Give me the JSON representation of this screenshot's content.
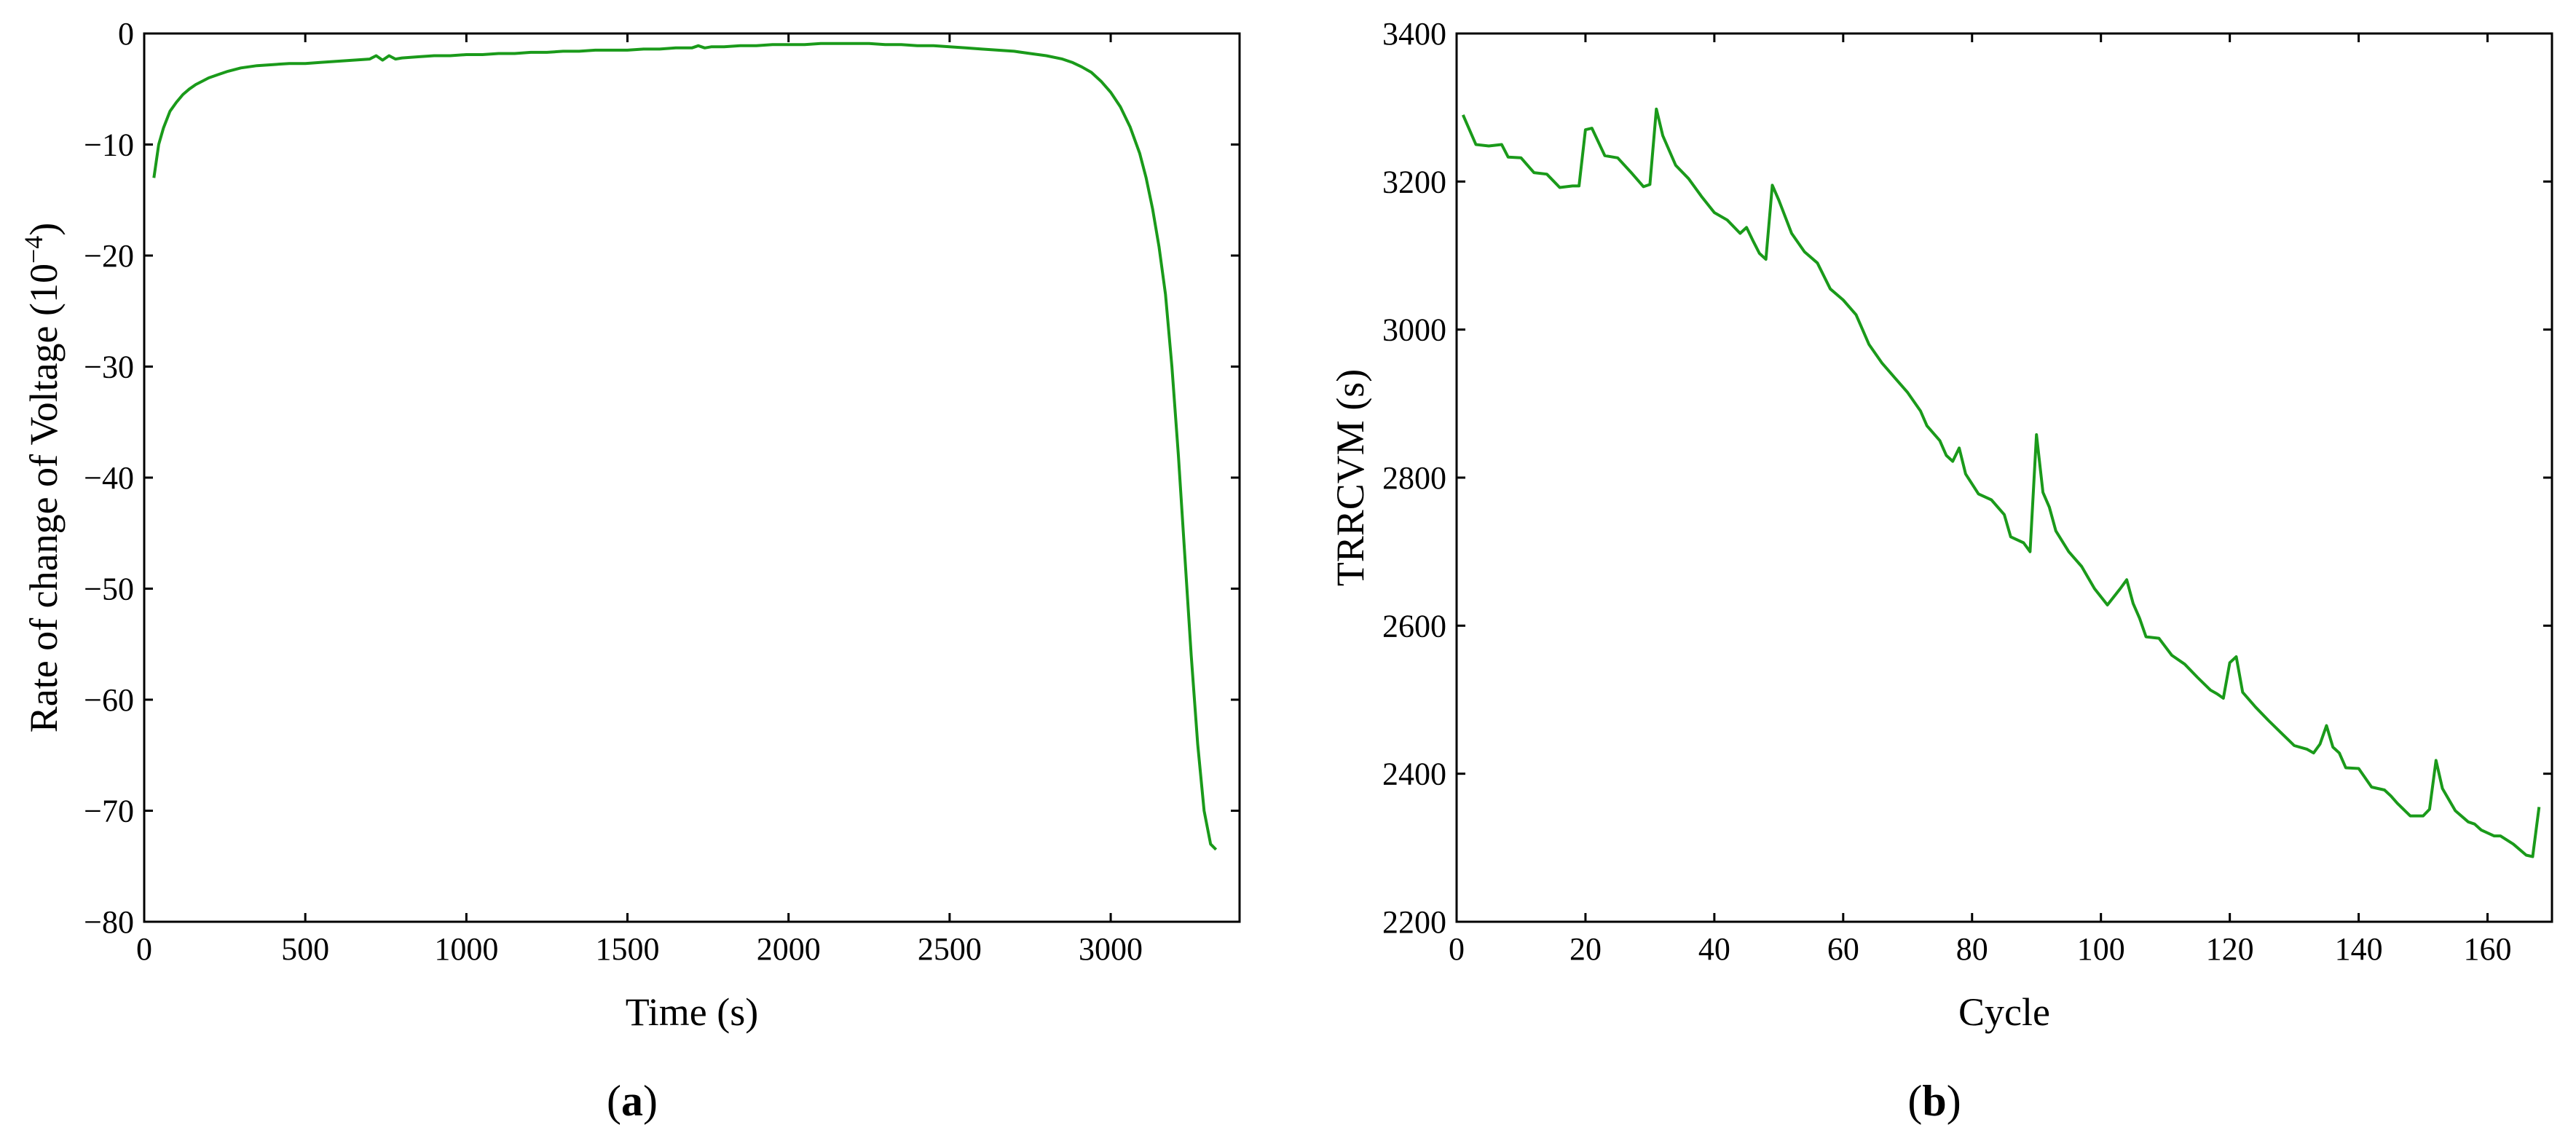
{
  "chart_data": [
    {
      "type": "line",
      "panel_label": "a",
      "xlabel": "Time (s)",
      "ylabel_base": "Rate of change of Voltage (10",
      "ylabel_exp": "−4",
      "ylabel_tail": ")",
      "xlim": [
        0,
        3400
      ],
      "ylim": [
        -80,
        0
      ],
      "xticks": [
        0,
        500,
        1000,
        1500,
        2000,
        2500,
        3000
      ],
      "yticks": [
        0,
        -10,
        -20,
        -30,
        -40,
        -50,
        -60,
        -70,
        -80
      ],
      "xtick_labels": [
        "0",
        "500",
        "1000",
        "1500",
        "2000",
        "2500",
        "3000"
      ],
      "ytick_labels": [
        "0",
        "−10",
        "−20",
        "−30",
        "−40",
        "−50",
        "−60",
        "−70",
        "−80"
      ],
      "line_color": "#1a9a1a",
      "series": [
        {
          "x": [
            30,
            45,
            60,
            80,
            100,
            120,
            140,
            160,
            180,
            200,
            230,
            260,
            300,
            350,
            400,
            450,
            500,
            550,
            600,
            650,
            700,
            720,
            740,
            760,
            780,
            800,
            850,
            900,
            950,
            1000,
            1050,
            1100,
            1150,
            1200,
            1250,
            1300,
            1350,
            1400,
            1450,
            1500,
            1550,
            1600,
            1650,
            1700,
            1720,
            1740,
            1760,
            1800,
            1850,
            1900,
            1950,
            2000,
            2050,
            2100,
            2150,
            2200,
            2250,
            2300,
            2350,
            2400,
            2450,
            2500,
            2550,
            2600,
            2650,
            2700,
            2750,
            2800,
            2850,
            2880,
            2910,
            2940,
            2970,
            3000,
            3030,
            3060,
            3090,
            3110,
            3130,
            3150,
            3170,
            3190,
            3210,
            3230,
            3250,
            3270,
            3290,
            3310,
            3327
          ],
          "y": [
            -13.0,
            -10.0,
            -8.5,
            -7.0,
            -6.2,
            -5.5,
            -5.0,
            -4.6,
            -4.3,
            -4.0,
            -3.7,
            -3.4,
            -3.1,
            -2.9,
            -2.8,
            -2.7,
            -2.7,
            -2.6,
            -2.5,
            -2.4,
            -2.3,
            -2.0,
            -2.4,
            -2.0,
            -2.3,
            -2.2,
            -2.1,
            -2.0,
            -2.0,
            -1.9,
            -1.9,
            -1.8,
            -1.8,
            -1.7,
            -1.7,
            -1.6,
            -1.6,
            -1.5,
            -1.5,
            -1.5,
            -1.4,
            -1.4,
            -1.3,
            -1.3,
            -1.1,
            -1.3,
            -1.2,
            -1.2,
            -1.1,
            -1.1,
            -1.0,
            -1.0,
            -1.0,
            -0.9,
            -0.9,
            -0.9,
            -0.9,
            -1.0,
            -1.0,
            -1.1,
            -1.1,
            -1.2,
            -1.3,
            -1.4,
            -1.5,
            -1.6,
            -1.8,
            -2.0,
            -2.3,
            -2.6,
            -3.0,
            -3.5,
            -4.3,
            -5.3,
            -6.6,
            -8.4,
            -10.8,
            -13.0,
            -15.8,
            -19.2,
            -23.5,
            -30.0,
            -38.0,
            -47.0,
            -56.0,
            -64.0,
            -70.0,
            -73.0,
            -73.5
          ]
        }
      ]
    },
    {
      "type": "line",
      "panel_label": "b",
      "xlabel": "Cycle",
      "ylabel": "TRRCVM (s)",
      "xlim": [
        0,
        170
      ],
      "ylim": [
        2200,
        3400
      ],
      "xticks": [
        0,
        20,
        40,
        60,
        80,
        100,
        120,
        140,
        160
      ],
      "yticks": [
        2200,
        2400,
        2600,
        2800,
        3000,
        3200,
        3400
      ],
      "xtick_labels": [
        "0",
        "20",
        "40",
        "60",
        "80",
        "100",
        "120",
        "140",
        "160"
      ],
      "ytick_labels": [
        "2200",
        "2400",
        "2600",
        "2800",
        "3000",
        "3200",
        "3400"
      ],
      "line_color": "#1a9a1a",
      "series": [
        {
          "x": [
            1,
            3,
            5,
            7,
            8,
            10,
            12,
            14,
            16,
            18,
            19,
            20,
            21,
            23,
            25,
            27,
            29,
            30,
            31,
            32,
            34,
            36,
            38,
            40,
            42,
            44,
            45,
            46,
            47,
            48,
            49,
            50,
            52,
            54,
            56,
            58,
            60,
            62,
            63,
            64,
            66,
            68,
            70,
            72,
            73,
            75,
            76,
            77,
            78,
            79,
            81,
            83,
            85,
            86,
            88,
            89,
            90,
            91,
            92,
            93,
            95,
            97,
            99,
            101,
            103,
            104,
            105,
            106,
            107,
            109,
            111,
            113,
            115,
            117,
            118,
            119,
            120,
            121,
            122,
            124,
            126,
            128,
            130,
            132,
            133,
            134,
            135,
            136,
            137,
            138,
            140,
            142,
            144,
            145,
            146,
            148,
            150,
            151,
            152,
            153,
            155,
            157,
            158,
            159,
            161,
            162,
            164,
            166,
            167,
            168
          ],
          "y": [
            3290,
            3250,
            3248,
            3250,
            3233,
            3232,
            3212,
            3210,
            3192,
            3194,
            3194,
            3270,
            3272,
            3235,
            3232,
            3213,
            3193,
            3196,
            3298,
            3262,
            3222,
            3204,
            3180,
            3158,
            3148,
            3130,
            3138,
            3120,
            3103,
            3095,
            3195,
            3175,
            3130,
            3105,
            3090,
            3055,
            3040,
            3020,
            3000,
            2980,
            2955,
            2935,
            2915,
            2890,
            2870,
            2850,
            2830,
            2822,
            2840,
            2805,
            2778,
            2770,
            2750,
            2720,
            2712,
            2700,
            2858,
            2780,
            2760,
            2728,
            2700,
            2680,
            2650,
            2628,
            2650,
            2662,
            2630,
            2610,
            2585,
            2583,
            2560,
            2548,
            2530,
            2513,
            2508,
            2502,
            2550,
            2558,
            2510,
            2490,
            2472,
            2455,
            2438,
            2433,
            2428,
            2440,
            2465,
            2436,
            2428,
            2408,
            2407,
            2382,
            2378,
            2370,
            2360,
            2343,
            2343,
            2352,
            2418,
            2380,
            2350,
            2335,
            2332,
            2324,
            2316,
            2316,
            2305,
            2290,
            2288,
            2355
          ]
        }
      ]
    }
  ]
}
